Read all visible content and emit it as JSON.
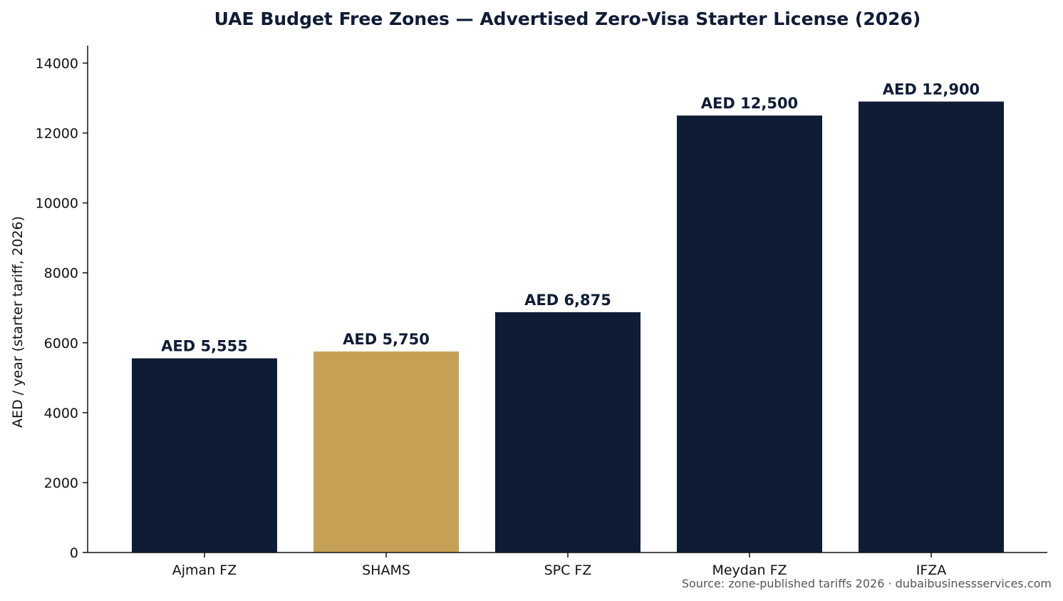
{
  "colors": {
    "bar_default": "#0f1c36",
    "bar_highlight": "#c6a155",
    "title": "#0f1c36",
    "data_label": "#0f1c36",
    "axis": "#111111"
  },
  "chart_data": {
    "type": "bar",
    "title": "UAE Budget Free Zones — Advertised Zero-Visa Starter License (2026)",
    "xlabel": "",
    "ylabel": "AED / year (starter tariff, 2026)",
    "categories": [
      "Ajman FZ",
      "SHAMS",
      "SPC FZ",
      "Meydan FZ",
      "IFZA"
    ],
    "values": [
      5555,
      5750,
      6875,
      12500,
      12900
    ],
    "data_labels": [
      "AED 5,555",
      "AED 5,750",
      "AED 6,875",
      "AED 12,500",
      "AED 12,900"
    ],
    "highlight_index": 1,
    "ylim": [
      0,
      14500
    ],
    "yticks": [
      0,
      2000,
      4000,
      6000,
      8000,
      10000,
      12000,
      14000
    ],
    "ytick_labels": [
      "0",
      "2000",
      "4000",
      "6000",
      "8000",
      "10000",
      "12000",
      "14000"
    ],
    "grid": false,
    "legend": "none",
    "source_note": "Source: zone-published tariffs 2026 · dubaibusinessservices.com"
  }
}
